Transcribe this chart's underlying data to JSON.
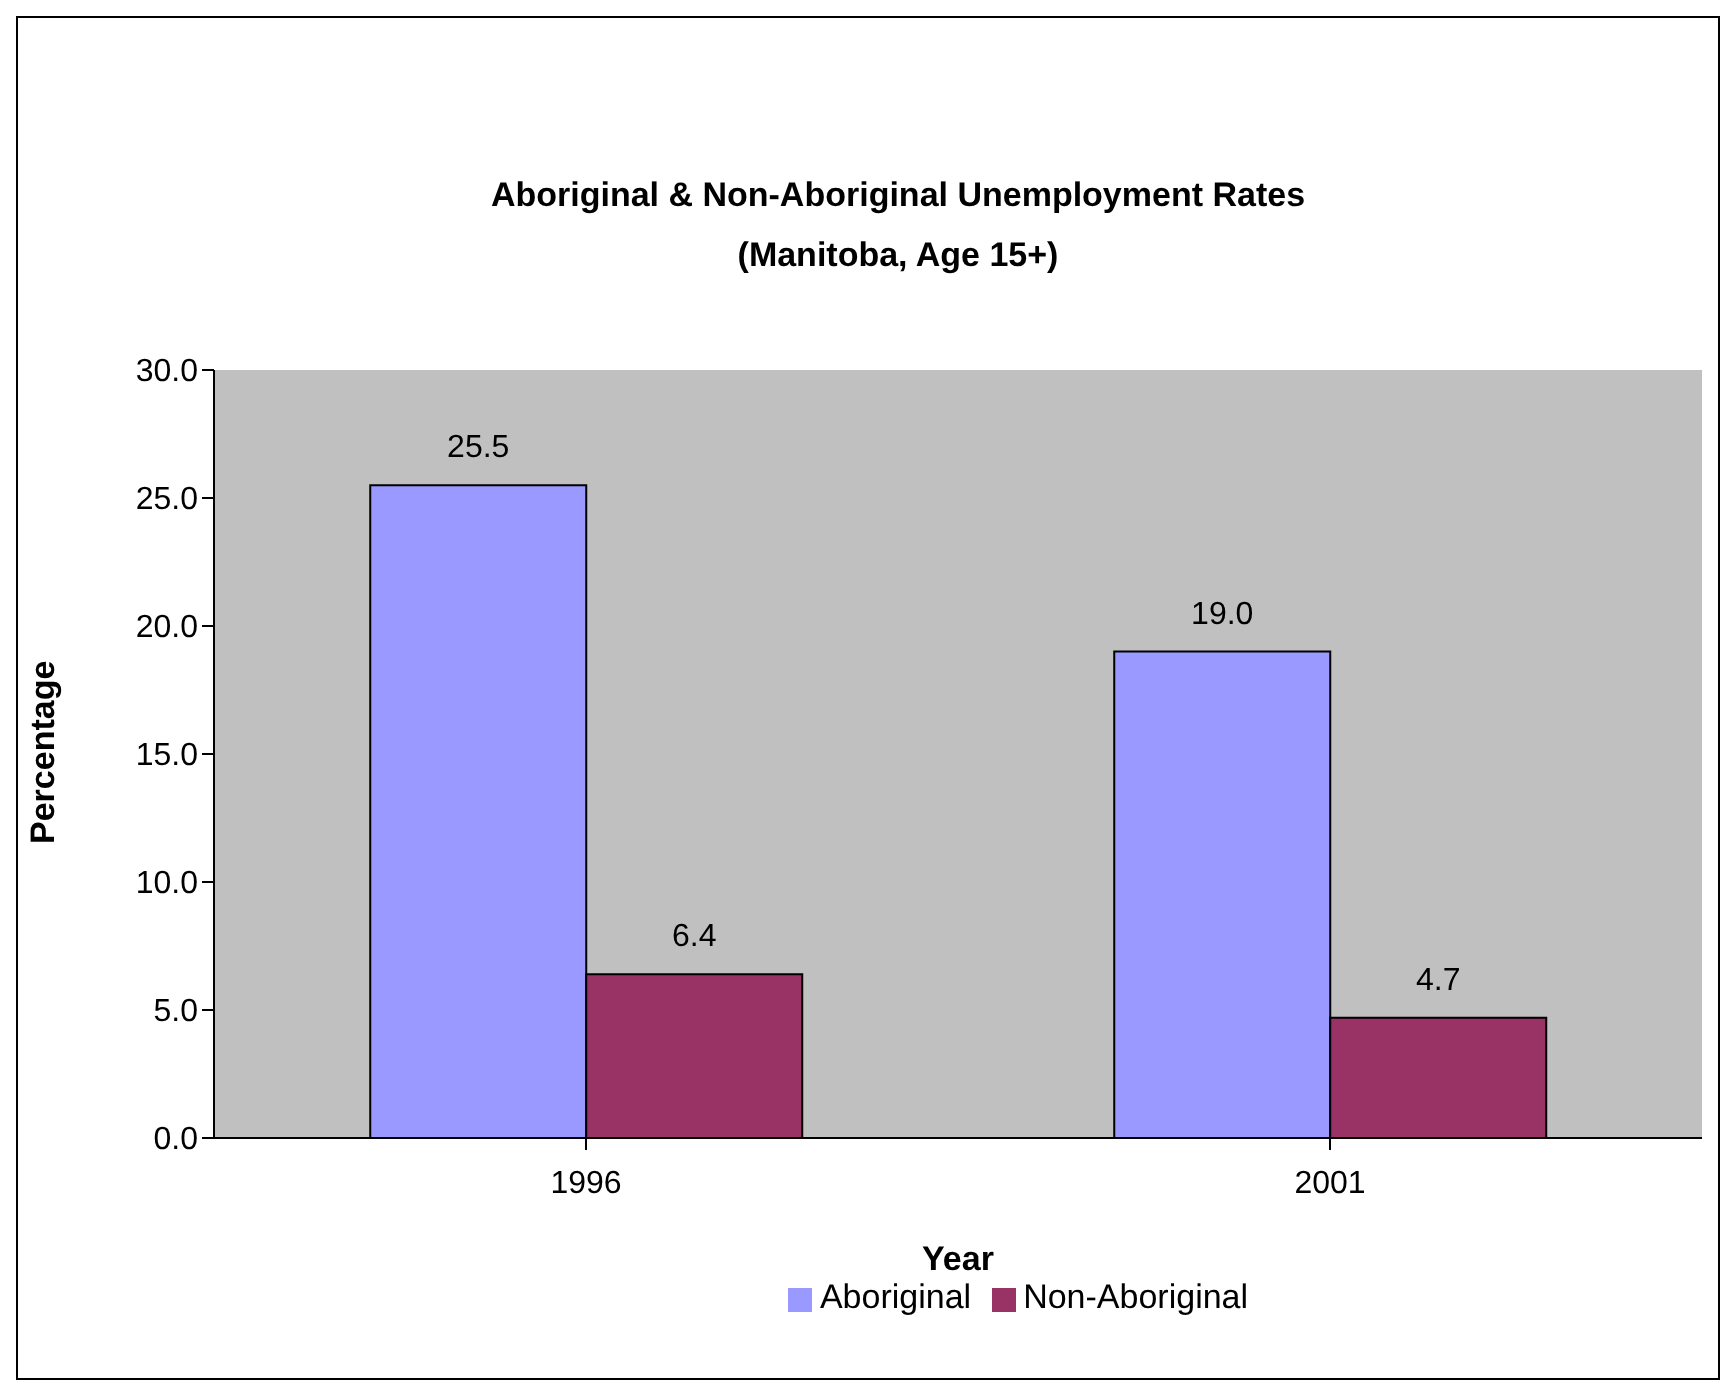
{
  "chart_data": {
    "type": "bar",
    "title": "Aboriginal & Non-Aboriginal Unemployment Rates\n(Manitoba, Age 15+)",
    "xlabel": "Year",
    "ylabel": "Percentage",
    "categories": [
      "1996",
      "2001"
    ],
    "series": [
      {
        "name": "Aboriginal",
        "color": "#9999ff",
        "values": [
          25.5,
          19.0
        ],
        "value_labels": [
          "25.5",
          "19.0"
        ]
      },
      {
        "name": "Non-Aboriginal",
        "color": "#993366",
        "values": [
          6.4,
          4.7
        ],
        "value_labels": [
          "6.4",
          "4.7"
        ]
      }
    ],
    "ylim": [
      0,
      30
    ],
    "yticks": [
      {
        "value": 0,
        "label": "0.0"
      },
      {
        "value": 5,
        "label": "5.0"
      },
      {
        "value": 10,
        "label": "10.0"
      },
      {
        "value": 15,
        "label": "15.0"
      },
      {
        "value": 20,
        "label": "20.0"
      },
      {
        "value": 25,
        "label": "25.0"
      },
      {
        "value": 30,
        "label": "30.0"
      }
    ],
    "legend": "bottom"
  }
}
